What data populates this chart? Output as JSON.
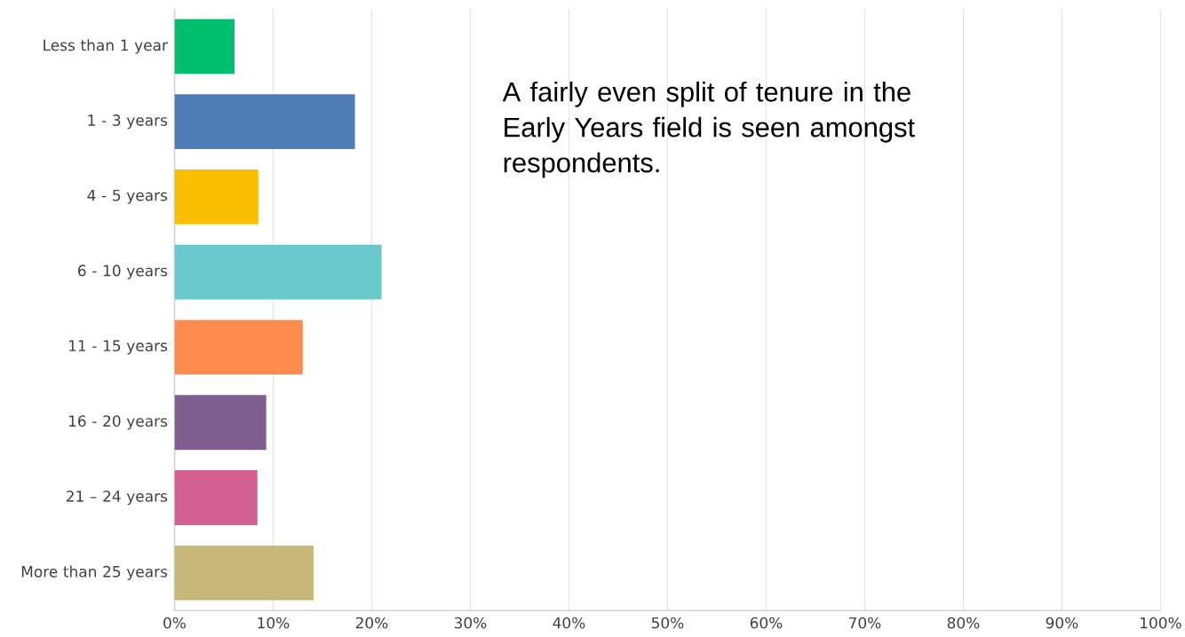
{
  "chart_data": {
    "type": "bar",
    "orientation": "horizontal",
    "categories": [
      "Less than 1 year",
      "1 - 3 years",
      "4 - 5 years",
      "6 - 10 years",
      "11 - 15 years",
      "16 - 20 years",
      "21 – 24 years",
      "More than 25 years"
    ],
    "values": [
      6.1,
      18.3,
      8.5,
      21.0,
      13.0,
      9.3,
      8.4,
      14.1
    ],
    "colors": [
      "#00bf6f",
      "#507cb6",
      "#f9be00",
      "#6bc8cd",
      "#ff8b4f",
      "#7f5f8f",
      "#d25f90",
      "#c7b879"
    ],
    "xlim": [
      0,
      100
    ],
    "xticks": [
      {
        "value": 0,
        "label": "0%"
      },
      {
        "value": 10,
        "label": "10%"
      },
      {
        "value": 20,
        "label": "20%"
      },
      {
        "value": 30,
        "label": "30%"
      },
      {
        "value": 40,
        "label": "40%"
      },
      {
        "value": 50,
        "label": "50%"
      },
      {
        "value": 60,
        "label": "60%"
      },
      {
        "value": 70,
        "label": "70%"
      },
      {
        "value": 80,
        "label": "80%"
      },
      {
        "value": 90,
        "label": "90%"
      },
      {
        "value": 100,
        "label": "100%"
      }
    ],
    "grid": "x",
    "annotations": [
      "A fairly even split of tenure in the Early Years field is seen amongst respondents."
    ]
  }
}
